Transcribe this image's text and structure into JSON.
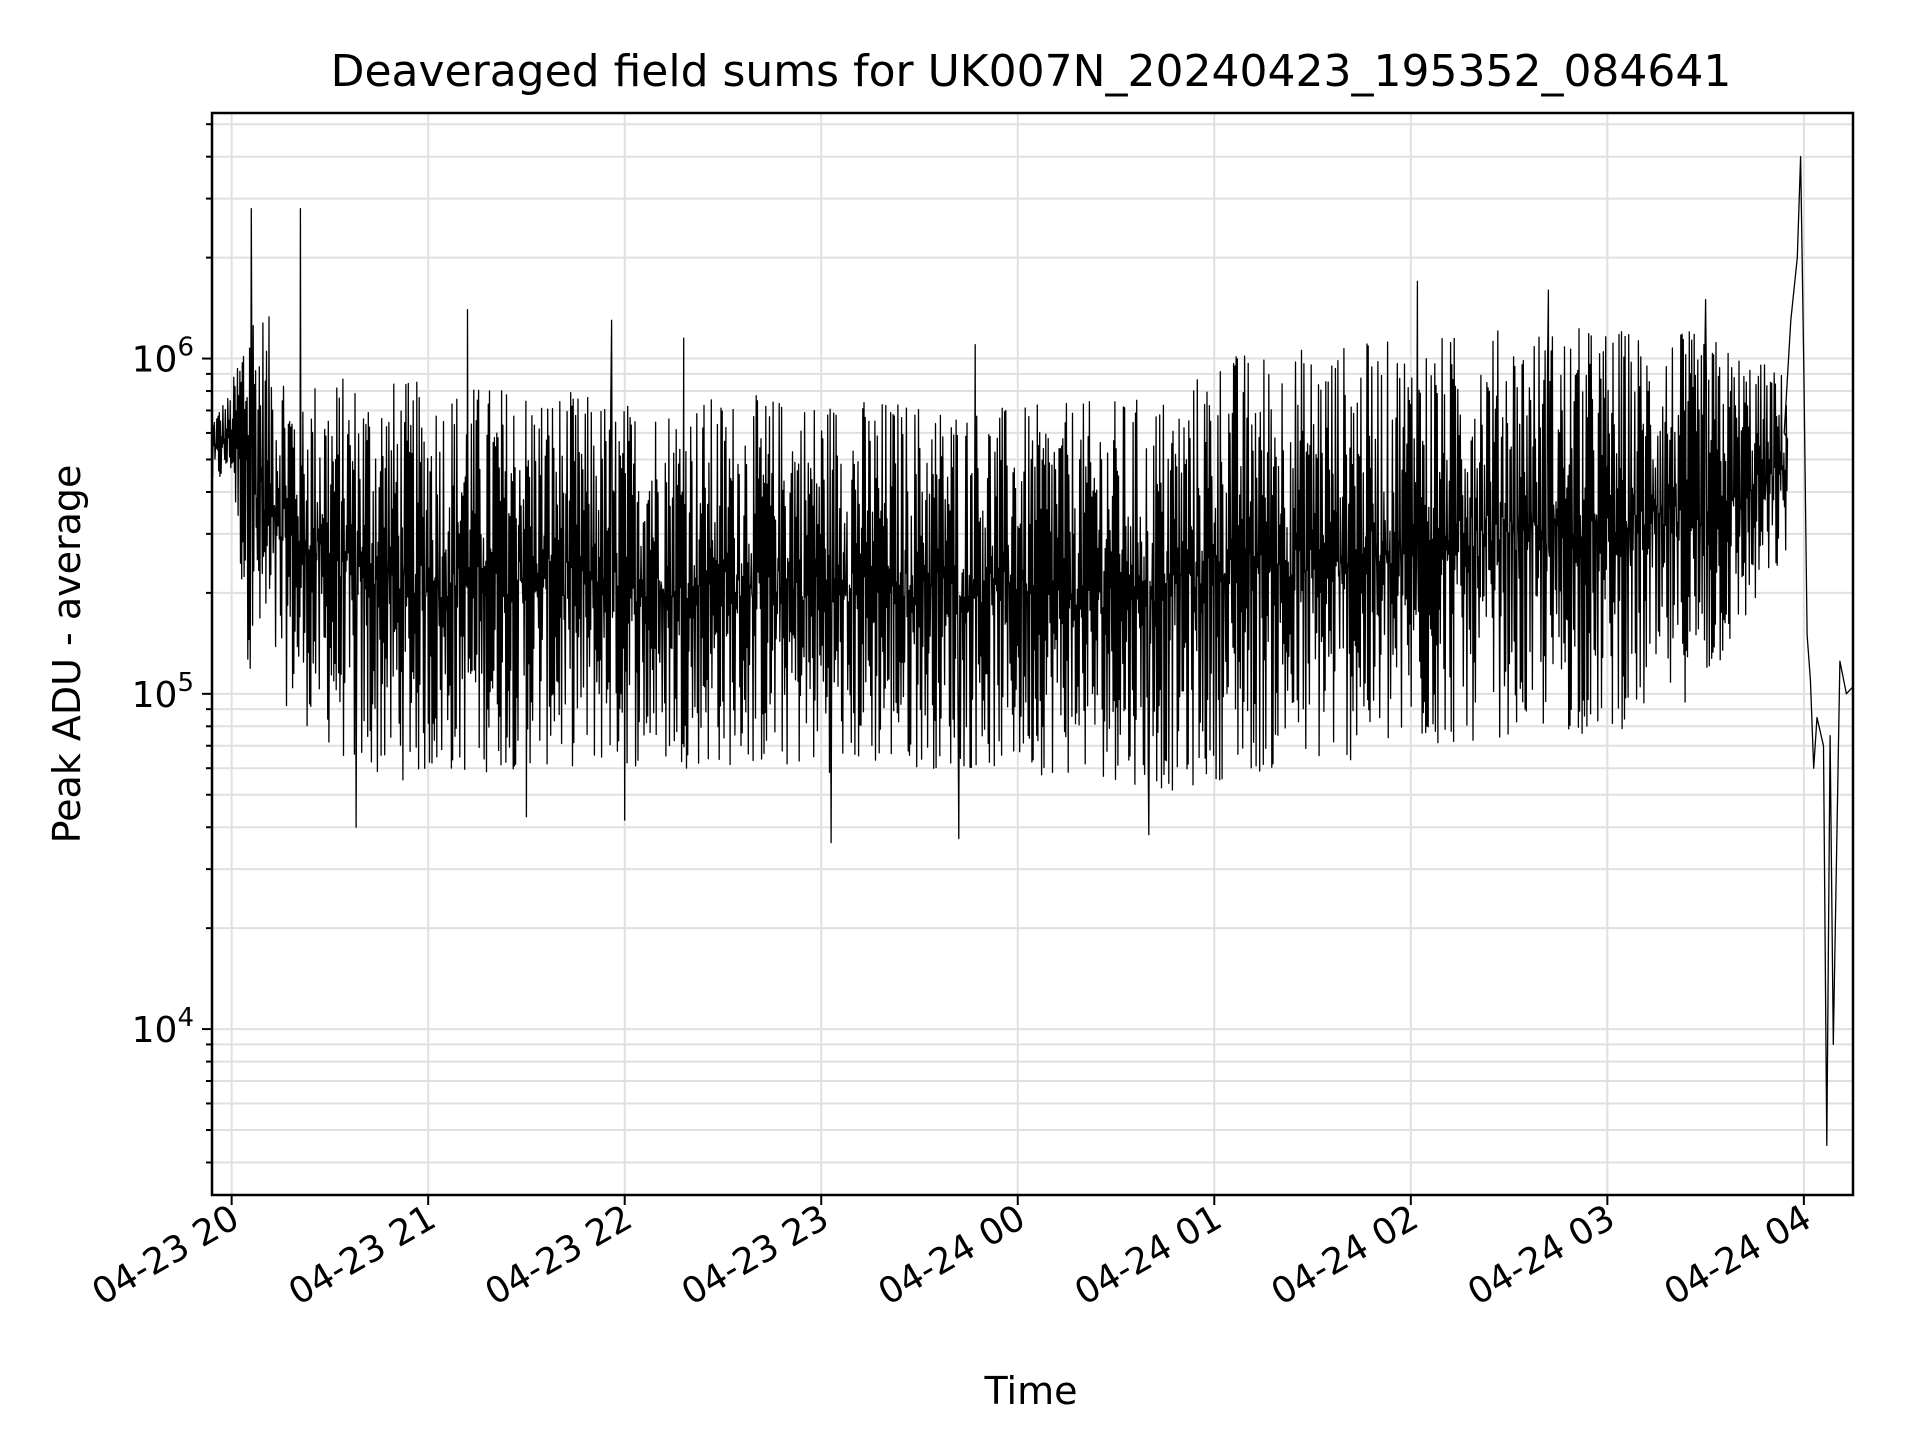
{
  "chart_data": {
    "type": "line",
    "title": "Deaveraged field sums for UK007N_20240423_195352_084641",
    "xlabel": "Time",
    "ylabel": "Peak ADU - average",
    "yscale": "log",
    "grid": true,
    "xlim": [
      "2024-04-23 19:54",
      "2024-04-24 04:15"
    ],
    "ylim": [
      3200,
      5400000
    ],
    "x_ticks": [
      {
        "value": "2024-04-23 20:00",
        "label": "04-23 20"
      },
      {
        "value": "2024-04-23 21:00",
        "label": "04-23 21"
      },
      {
        "value": "2024-04-23 22:00",
        "label": "04-23 22"
      },
      {
        "value": "2024-04-23 23:00",
        "label": "04-23 23"
      },
      {
        "value": "2024-04-24 00:00",
        "label": "04-24 00"
      },
      {
        "value": "2024-04-24 01:00",
        "label": "04-24 01"
      },
      {
        "value": "2024-04-24 02:00",
        "label": "04-24 02"
      },
      {
        "value": "2024-04-24 03:00",
        "label": "04-24 03"
      },
      {
        "value": "2024-04-24 04:00",
        "label": "04-24 04"
      }
    ],
    "y_ticks": [
      {
        "value": 10000,
        "base": "10",
        "exp": "4"
      },
      {
        "value": 100000,
        "base": "10",
        "exp": "5"
      },
      {
        "value": 1000000,
        "base": "10",
        "exp": "6"
      }
    ],
    "series": [
      {
        "color": "#000000",
        "envelope": [
          {
            "x": "2024-04-23 19:54",
            "low": 400000,
            "high": 700000
          },
          {
            "x": "2024-04-23 20:00",
            "low": 450000,
            "high": 800000
          },
          {
            "x": "2024-04-23 20:05",
            "low": 120000,
            "high": 1800000
          },
          {
            "x": "2024-04-23 20:20",
            "low": 85000,
            "high": 900000
          },
          {
            "x": "2024-04-23 20:40",
            "low": 55000,
            "high": 900000
          },
          {
            "x": "2024-04-23 21:00",
            "low": 55000,
            "high": 850000
          },
          {
            "x": "2024-04-23 21:30",
            "low": 60000,
            "high": 850000
          },
          {
            "x": "2024-04-23 22:00",
            "low": 60000,
            "high": 750000
          },
          {
            "x": "2024-04-23 22:30",
            "low": 60000,
            "high": 780000
          },
          {
            "x": "2024-04-23 23:00",
            "low": 58000,
            "high": 780000
          },
          {
            "x": "2024-04-23 23:30",
            "low": 60000,
            "high": 760000
          },
          {
            "x": "2024-04-24 00:00",
            "low": 58000,
            "high": 720000
          },
          {
            "x": "2024-04-24 00:30",
            "low": 55000,
            "high": 760000
          },
          {
            "x": "2024-04-24 00:50",
            "low": 50000,
            "high": 800000
          },
          {
            "x": "2024-04-24 01:00",
            "low": 55000,
            "high": 1050000
          },
          {
            "x": "2024-04-24 01:30",
            "low": 60000,
            "high": 1100000
          },
          {
            "x": "2024-04-24 02:00",
            "low": 65000,
            "high": 1150000
          },
          {
            "x": "2024-04-24 02:30",
            "low": 75000,
            "high": 1250000
          },
          {
            "x": "2024-04-24 03:00",
            "low": 75000,
            "high": 1250000
          },
          {
            "x": "2024-04-24 03:30",
            "low": 100000,
            "high": 1200000
          },
          {
            "x": "2024-04-24 03:55",
            "low": 250000,
            "high": 900000
          }
        ],
        "spikes": [
          {
            "x": "2024-04-23 20:06",
            "value": 2800000
          },
          {
            "x": "2024-04-23 20:21",
            "value": 2800000
          },
          {
            "x": "2024-04-23 20:38",
            "value": 40000
          },
          {
            "x": "2024-04-23 21:12",
            "value": 1400000
          },
          {
            "x": "2024-04-23 21:30",
            "value": 43000
          },
          {
            "x": "2024-04-23 21:56",
            "value": 1300000
          },
          {
            "x": "2024-04-23 22:00",
            "value": 42000
          },
          {
            "x": "2024-04-23 22:18",
            "value": 1150000
          },
          {
            "x": "2024-04-23 23:03",
            "value": 36000
          },
          {
            "x": "2024-04-23 23:47",
            "value": 1100000
          },
          {
            "x": "2024-04-23 23:42",
            "value": 37000
          },
          {
            "x": "2024-04-24 00:40",
            "value": 38000
          },
          {
            "x": "2024-04-24 02:02",
            "value": 1700000
          },
          {
            "x": "2024-04-24 02:42",
            "value": 1600000
          },
          {
            "x": "2024-04-24 03:30",
            "value": 1500000
          }
        ],
        "tail": [
          {
            "x": "2024-04-24 03:54",
            "value": 600000
          },
          {
            "x": "2024-04-24 03:56",
            "value": 1300000
          },
          {
            "x": "2024-04-24 03:58",
            "value": 2000000
          },
          {
            "x": "2024-04-24 03:59",
            "value": 4000000
          },
          {
            "x": "2024-04-24 04:00",
            "value": 900000
          },
          {
            "x": "2024-04-24 04:01",
            "value": 150000
          },
          {
            "x": "2024-04-24 04:02",
            "value": 110000
          },
          {
            "x": "2024-04-24 04:03",
            "value": 60000
          },
          {
            "x": "2024-04-24 04:04",
            "value": 85000
          },
          {
            "x": "2024-04-24 04:06",
            "value": 70000
          },
          {
            "x": "2024-04-24 04:07",
            "value": 4500
          },
          {
            "x": "2024-04-24 04:08",
            "value": 75000
          },
          {
            "x": "2024-04-24 04:09",
            "value": 9000
          },
          {
            "x": "2024-04-24 04:11",
            "value": 125000
          },
          {
            "x": "2024-04-24 04:13",
            "value": 100000
          },
          {
            "x": "2024-04-24 04:15",
            "value": 105000
          }
        ]
      }
    ]
  }
}
